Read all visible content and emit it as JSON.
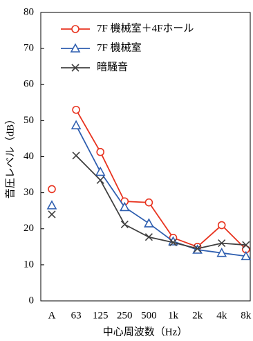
{
  "chart_data": {
    "type": "line",
    "y_label": "音圧レベル（dB）",
    "x_label": "中心周波数（Hz）",
    "categories": [
      "A",
      "63",
      "125",
      "250",
      "500",
      "1k",
      "2k",
      "4k",
      "8k"
    ],
    "connect_first": false,
    "ylim": [
      0,
      80
    ],
    "yticks": [
      0,
      10,
      20,
      30,
      40,
      50,
      60,
      70,
      80
    ],
    "legend": "top-left",
    "series": [
      {
        "name": "7F 機械室＋4Fホール",
        "color": "#e8331f",
        "marker": "circle",
        "values": [
          31,
          53,
          41.3,
          27.6,
          27.3,
          17.5,
          15,
          21,
          14.3
        ]
      },
      {
        "name": "7F 機械室",
        "color": "#2f5fb0",
        "marker": "triangle",
        "values": [
          26.5,
          48.7,
          35.8,
          26,
          21.5,
          16.5,
          14.2,
          13.3,
          12.4
        ]
      },
      {
        "name": "暗騒音",
        "color": "#404040",
        "marker": "x",
        "values": [
          24,
          40.3,
          33.5,
          21.2,
          17.7,
          16.2,
          14.5,
          16,
          15.5
        ]
      }
    ]
  }
}
